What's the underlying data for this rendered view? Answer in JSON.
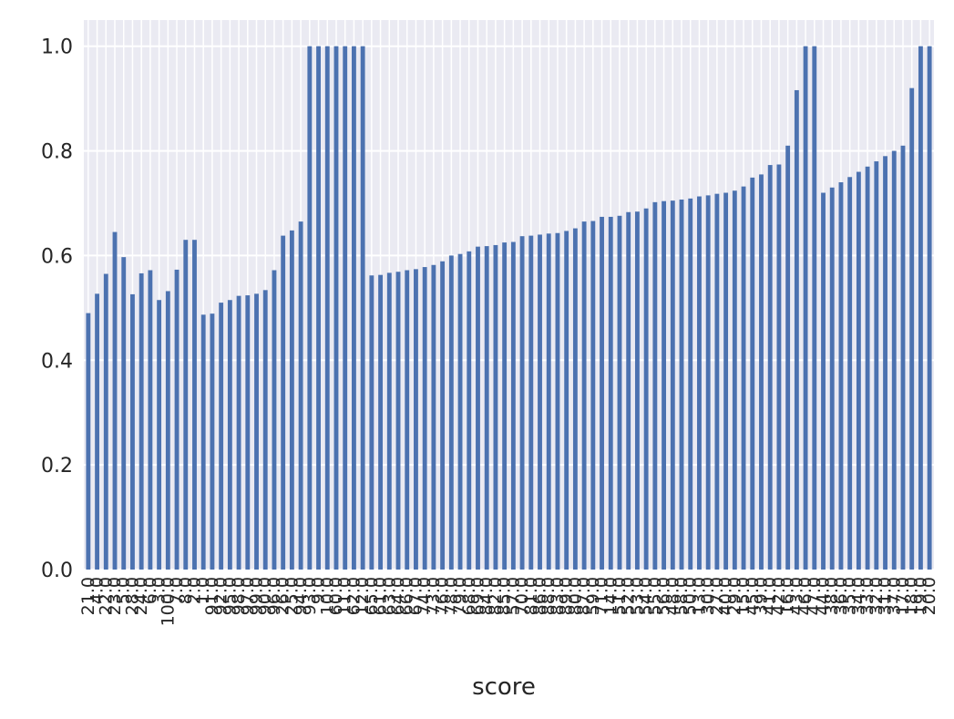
{
  "chart_data": {
    "type": "bar",
    "xlabel": "score",
    "ylabel": "",
    "ylim": [
      0,
      1.05
    ],
    "yticks": [
      "0.0",
      "0.2",
      "0.4",
      "0.6",
      "0.8",
      "1.0"
    ],
    "grid": true,
    "legend": "none",
    "colors": {
      "bar": "#4c72b0",
      "background": "#eaeaf2",
      "grid": "#ffffff",
      "text": "#262626"
    },
    "categories": [
      "21.0",
      "4.0",
      "22.0",
      "23.0",
      "5.0",
      "28.0",
      "24.0",
      "6.0",
      "3.0",
      "100.0",
      "7.0",
      "8.0",
      "2.0",
      "1.0",
      "91.0",
      "92.0",
      "95.0",
      "98.0",
      "97.0",
      "99.0",
      "90.0",
      "96.0",
      "26.0",
      "25.0",
      "94.0",
      "93.0",
      "9.0",
      "10.0",
      "60.0",
      "11.0",
      "62.0",
      "12.0",
      "65.0",
      "61.0",
      "63.0",
      "64.0",
      "66.0",
      "67.0",
      "74.0",
      "73.0",
      "76.0",
      "78.0",
      "79.0",
      "68.0",
      "69.0",
      "84.0",
      "82.0",
      "85.0",
      "57.0",
      "70.0",
      "81.0",
      "86.0",
      "88.0",
      "83.0",
      "89.0",
      "80.0",
      "87.0",
      "59.0",
      "71.0",
      "14.0",
      "51.0",
      "52.0",
      "53.0",
      "54.0",
      "55.0",
      "56.0",
      "48.0",
      "58.0",
      "50.0",
      "13.0",
      "30.0",
      "27.0",
      "40.0",
      "29.0",
      "15.0",
      "45.0",
      "39.0",
      "41.0",
      "42.0",
      "16.0",
      "43.0",
      "46.0",
      "47.0",
      "44.0",
      "38.0",
      "36.0",
      "35.0",
      "34.0",
      "33.0",
      "32.0",
      "31.0",
      "37.0",
      "17.0",
      "18.0",
      "19.0",
      "20.0"
    ],
    "values": [
      0.49,
      0.527,
      0.565,
      0.645,
      0.597,
      0.526,
      0.566,
      0.572,
      0.515,
      0.532,
      0.573,
      0.63,
      0.63,
      0.487,
      0.489,
      0.51,
      0.515,
      0.523,
      0.524,
      0.527,
      0.534,
      0.572,
      0.638,
      0.648,
      0.665,
      1.0,
      1.0,
      1.0,
      1.0,
      1.0,
      1.0,
      1.0,
      0.562,
      0.563,
      0.567,
      0.569,
      0.572,
      0.574,
      0.578,
      0.582,
      0.589,
      0.6,
      0.603,
      0.608,
      0.617,
      0.618,
      0.62,
      0.625,
      0.626,
      0.637,
      0.638,
      0.64,
      0.642,
      0.643,
      0.647,
      0.652,
      0.665,
      0.666,
      0.674,
      0.674,
      0.676,
      0.683,
      0.684,
      0.69,
      0.702,
      0.704,
      0.705,
      0.707,
      0.709,
      0.713,
      0.715,
      0.718,
      0.72,
      0.724,
      0.732,
      0.749,
      0.755,
      0.773,
      0.774,
      0.81,
      0.916,
      1.0,
      1.0,
      0.72,
      0.73,
      0.74,
      0.75,
      0.76,
      0.77,
      0.78,
      0.79,
      0.8,
      0.81,
      0.92,
      1.0,
      1.0
    ]
  }
}
